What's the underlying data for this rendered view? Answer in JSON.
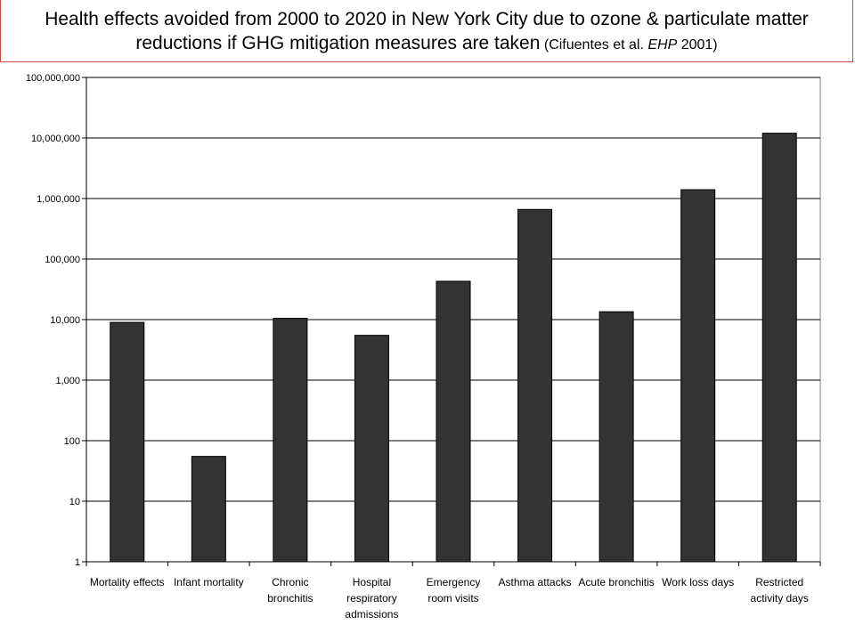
{
  "title": {
    "main": "Health effects avoided from 2000 to 2020 in New York City due to ozone & particulate matter reductions if GHG mitigation measures are taken",
    "citation_prefix": "(Cifuentes et al. ",
    "citation_journal": "EHP",
    "citation_suffix": " 2001)"
  },
  "chart_data": {
    "type": "bar",
    "scale": "log",
    "ylim": [
      1,
      100000000
    ],
    "grid": true,
    "legend": "none",
    "yticks": [
      1,
      10,
      100,
      1000,
      10000,
      100000,
      1000000,
      10000000,
      100000000
    ],
    "ytick_labels": [
      "1",
      "10",
      "100",
      "1,000",
      "10,000",
      "100,000",
      "1,000,000",
      "10,000,000",
      "100,000,000"
    ],
    "categories": [
      [
        "Mortality effects"
      ],
      [
        "Infant mortality"
      ],
      [
        "Chronic",
        "bronchitis"
      ],
      [
        "Hospital",
        "respiratory",
        "admissions"
      ],
      [
        "Emergency",
        "room visits"
      ],
      [
        "Asthma attacks"
      ],
      [
        "Acute bronchitis"
      ],
      [
        "Work loss days"
      ],
      [
        "Restricted",
        "activity days"
      ]
    ],
    "values": [
      9000,
      55,
      10500,
      5500,
      43000,
      660000,
      13500,
      1400000,
      12000000
    ],
    "bar_color": "#333333",
    "plot_background": "#ffffff",
    "grid_color": "#000000"
  }
}
